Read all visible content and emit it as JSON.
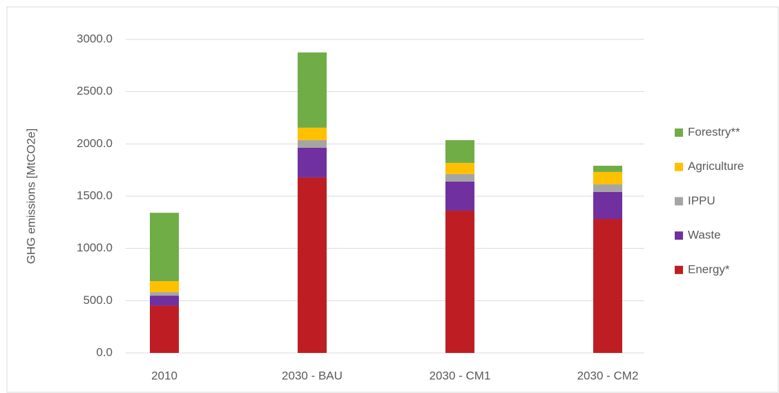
{
  "chart_data": {
    "type": "stacked_bar",
    "y_label": "GHG emissions [MtCO2e]",
    "categories": [
      "2010",
      "2030 - BAU",
      "2030 - CM1",
      "2030 - CM2"
    ],
    "series": [
      {
        "name": "Energy*",
        "color": "#be1e23",
        "values": [
          453,
          1679,
          1361,
          1282
        ]
      },
      {
        "name": "Waste",
        "color": "#7030a0",
        "values": [
          95,
          284,
          278,
          258
        ]
      },
      {
        "name": "IPPU",
        "color": "#a5a5a5",
        "values": [
          33,
          73,
          73,
          73
        ]
      },
      {
        "name": "Agriculture",
        "color": "#ffc000",
        "values": [
          106,
          119,
          106,
          119
        ]
      },
      {
        "name": "Forestry**",
        "color": "#70ad47",
        "values": [
          654,
          720,
          218,
          59
        ]
      }
    ],
    "ylim": [
      0,
      3000
    ],
    "yticks": [
      {
        "value": 0,
        "label": "0.0"
      },
      {
        "value": 500,
        "label": "500.0"
      },
      {
        "value": 1000,
        "label": "1000.0"
      },
      {
        "value": 1500,
        "label": "1500.0"
      },
      {
        "value": 2000,
        "label": "2000.0"
      },
      {
        "value": 2500,
        "label": "2500.0"
      },
      {
        "value": 3000,
        "label": "3000.0"
      }
    ],
    "grid": true,
    "legend": "right"
  }
}
